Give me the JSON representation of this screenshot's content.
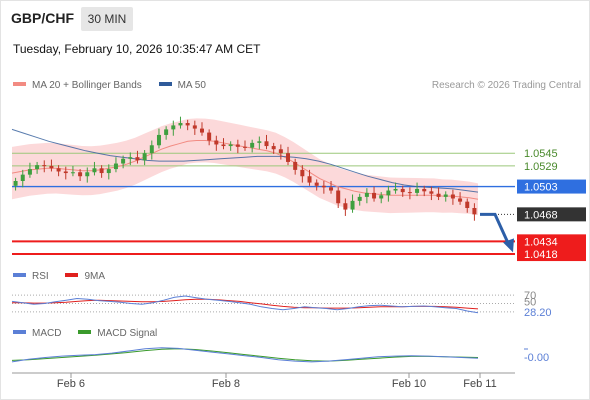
{
  "header": {
    "symbol": "GBP/CHF",
    "timeframe": "30 MIN",
    "datetime": "Tuesday, February 10, 2026 10:35:47 AM CET"
  },
  "legend_main": [
    {
      "label": "MA 20 + Bollinger Bands",
      "color": "#f28b82"
    },
    {
      "label": "MA 50",
      "color": "#2f5b9a"
    }
  ],
  "research_label": "Research © 2026 Trading Central",
  "legend_rsi": [
    {
      "label": "RSI",
      "color": "#5b7fd6"
    },
    {
      "label": "9MA",
      "color": "#e0201e"
    }
  ],
  "legend_macd": [
    {
      "label": "MACD",
      "color": "#5b7fd6"
    },
    {
      "label": "MACD Signal",
      "color": "#3a9a2c"
    }
  ],
  "colors": {
    "bull": "#3f9f3f",
    "bear": "#c0392b",
    "band": "#fbd2d3",
    "ma20": "#f28b82",
    "ma50": "#2f5b9a",
    "pivot": "#2f6fe0",
    "resistance": "#9bc87a",
    "support": "#ee1c1c",
    "current": "#333333",
    "arrow": "#2d5fa8"
  },
  "chart_data": {
    "type": "candlestick",
    "x_labels": [
      "Feb 6",
      "Feb 8",
      "Feb 10",
      "Feb 11"
    ],
    "ylim": [
      1.0408,
      1.0612
    ],
    "levels": [
      {
        "label": "1.0545",
        "value": 1.0545,
        "kind": "resistance"
      },
      {
        "label": "1.0529",
        "value": 1.0529,
        "kind": "resistance"
      },
      {
        "label": "1.0503",
        "value": 1.0503,
        "kind": "pivot"
      },
      {
        "label": "1.0468",
        "value": 1.0468,
        "kind": "current"
      },
      {
        "label": "1.0434",
        "value": 1.0434,
        "kind": "support"
      },
      {
        "label": "1.0418",
        "value": 1.0418,
        "kind": "support"
      }
    ],
    "price_series": [
      1.051,
      1.0518,
      1.0525,
      1.053,
      1.0529,
      1.0526,
      1.0522,
      1.052,
      1.0521,
      1.0516,
      1.0521,
      1.0526,
      1.052,
      1.0525,
      1.0532,
      1.0538,
      1.054,
      1.0536,
      1.0545,
      1.0555,
      1.0568,
      1.0575,
      1.058,
      1.0583,
      1.058,
      1.0576,
      1.0571,
      1.0561,
      1.0556,
      1.0554,
      1.0556,
      1.0553,
      1.0552,
      1.0558,
      1.056,
      1.0554,
      1.055,
      1.0545,
      1.0534,
      1.0524,
      1.0516,
      1.0508,
      1.0504,
      1.0502,
      1.0498,
      1.0482,
      1.0474,
      1.0485,
      1.049,
      1.0495,
      1.0488,
      1.0492,
      1.0498,
      1.05,
      1.0496,
      1.0495,
      1.05,
      1.0497,
      1.0494,
      1.049,
      1.0493,
      1.0488,
      1.0484,
      1.0476,
      1.0468
    ],
    "ma20": [
      1.052,
      1.0522,
      1.0524,
      1.0525,
      1.0526,
      1.0526,
      1.0525,
      1.0524,
      1.0523,
      1.0523,
      1.0524,
      1.0526,
      1.0528,
      1.0531,
      1.0535,
      1.054,
      1.0545,
      1.055,
      1.0554,
      1.0557,
      1.056,
      1.0561,
      1.0561,
      1.056,
      1.0558,
      1.0556,
      1.0554,
      1.0552,
      1.055,
      1.0548,
      1.0545,
      1.054,
      1.0534,
      1.0527,
      1.052,
      1.0513,
      1.0508,
      1.0503,
      1.05,
      1.0497,
      1.0495,
      1.0494,
      1.0493,
      1.0492,
      1.0492,
      1.0492,
      1.0492,
      1.0492,
      1.0492,
      1.0491,
      1.0491,
      1.049,
      1.0489,
      1.0487
    ],
    "ma50": [
      1.0575,
      1.057,
      1.0565,
      1.056,
      1.0556,
      1.0552,
      1.0548,
      1.0545,
      1.0542,
      1.054,
      1.0538,
      1.0536,
      1.0535,
      1.0535,
      1.0535,
      1.0536,
      1.0537,
      1.0538,
      1.0539,
      1.054,
      1.0541,
      1.0541,
      1.0541,
      1.054,
      1.0538,
      1.0535,
      1.0531,
      1.0526,
      1.0521,
      1.0516,
      1.0512,
      1.0508,
      1.0505,
      1.0503,
      1.0502,
      1.0501,
      1.05,
      1.0498,
      1.0496
    ],
    "rsi": {
      "labels": [
        "70",
        "50",
        "28.20"
      ],
      "ylim": [
        20,
        80
      ],
      "rsi_line": [
        55,
        52,
        48,
        50,
        54,
        58,
        62,
        60,
        57,
        55,
        53,
        50,
        48,
        52,
        58,
        65,
        68,
        64,
        60,
        58,
        55,
        52,
        48,
        42,
        38,
        35,
        38,
        42,
        40,
        38,
        35,
        38,
        42,
        45,
        46,
        44,
        42,
        43,
        44,
        42,
        40,
        38,
        32,
        28
      ],
      "ma9_line": [
        52,
        52,
        51,
        51,
        52,
        53,
        55,
        57,
        58,
        57,
        56,
        55,
        54,
        54,
        55,
        57,
        59,
        60,
        60,
        59,
        57,
        55,
        52,
        49,
        46,
        43,
        41,
        40,
        40,
        39,
        39,
        39,
        40,
        41,
        42,
        42,
        42,
        43,
        43,
        43,
        42,
        41,
        39,
        37
      ]
    },
    "macd": {
      "labels": [
        "-0.00"
      ],
      "ylim": [
        -0.004,
        0.004
      ],
      "macd_line": [
        -0.0012,
        -0.0005,
        0.0,
        0.0004,
        0.0006,
        0.0008,
        0.0012,
        0.0018,
        0.0024,
        0.0027,
        0.0025,
        0.002,
        0.0015,
        0.001,
        0.0005,
        0.0,
        -0.0006,
        -0.001,
        -0.0012,
        -0.001,
        -0.0006,
        -0.0002,
        0.0002,
        0.0004,
        0.0005,
        0.0004,
        0.0002,
        0.0,
        -0.0002
      ],
      "signal_line": [
        -0.0008,
        -0.0006,
        -0.0003,
        0.0,
        0.0003,
        0.0006,
        0.001,
        0.0014,
        0.0019,
        0.0023,
        0.0024,
        0.0022,
        0.0018,
        0.0013,
        0.0008,
        0.0003,
        -0.0002,
        -0.0006,
        -0.0009,
        -0.001,
        -0.0008,
        -0.0005,
        -0.0002,
        0.0001,
        0.0003,
        0.0003,
        0.0002,
        0.0001,
        0.0
      ]
    }
  }
}
